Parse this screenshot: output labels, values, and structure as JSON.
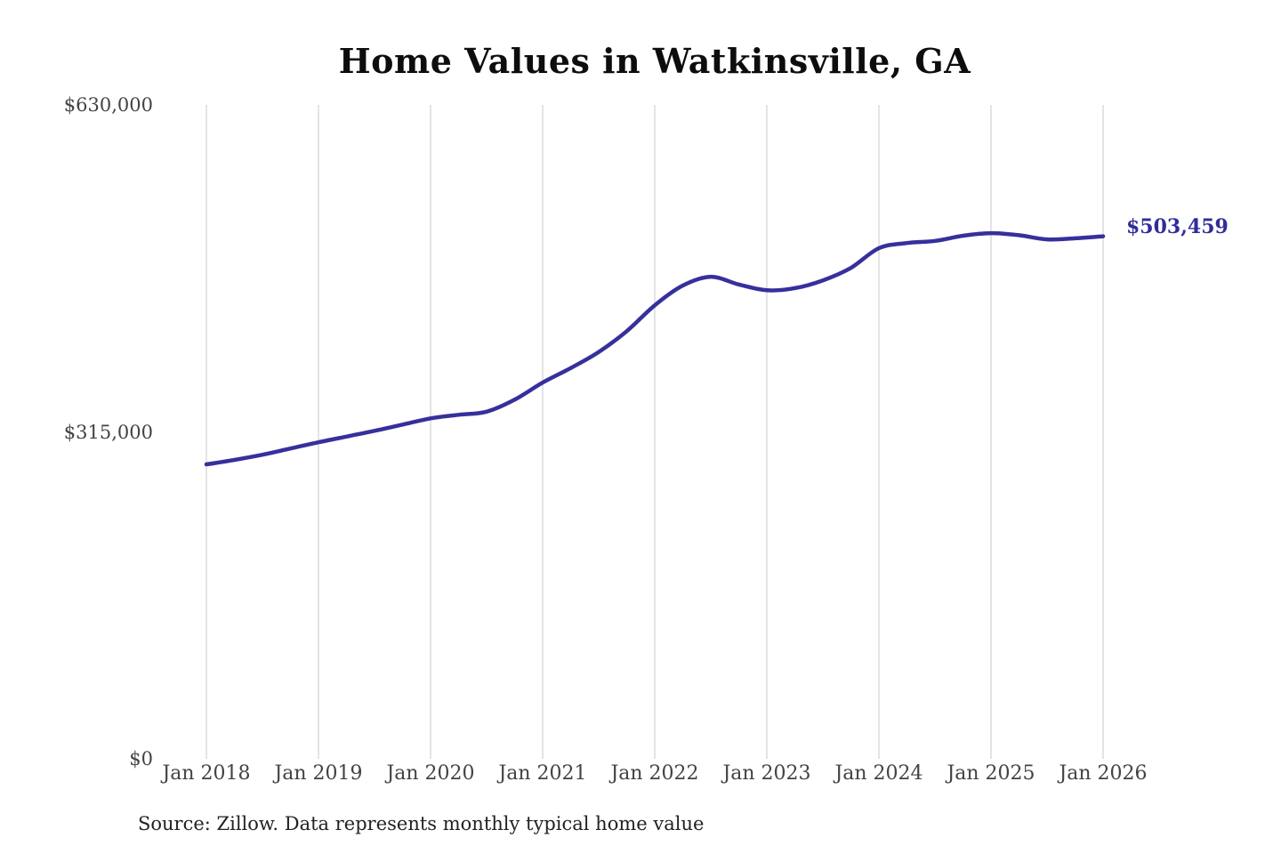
{
  "page": {
    "background_color": "#ffffff"
  },
  "chart_data": {
    "type": "line",
    "title": "Home Values in Watkinsville, GA",
    "xlabel": "",
    "ylabel": "",
    "x_tick_labels": [
      "Jan 2018",
      "Jan 2019",
      "Jan 2020",
      "Jan 2021",
      "Jan 2022",
      "Jan 2023",
      "Jan 2024",
      "Jan 2025",
      "Jan 2026"
    ],
    "y_tick_labels": [
      "$0",
      "$315,000",
      "$630,000"
    ],
    "y_tick_values": [
      0,
      315000,
      630000
    ],
    "ylim": [
      0,
      630000
    ],
    "x_range_months": [
      "2018-01",
      "2026-01"
    ],
    "grid": "vertical-only",
    "legend_position": "none",
    "gridline_color": "#c9c9c9",
    "line_color": "#36309c",
    "end_label": "$503,459",
    "end_label_color": "#312c9b",
    "series": [
      {
        "name": "Monthly typical home value",
        "points": [
          {
            "date": "2018-01",
            "value": 283700
          },
          {
            "date": "2018-04",
            "value": 288000
          },
          {
            "date": "2018-07",
            "value": 293000
          },
          {
            "date": "2018-10",
            "value": 299000
          },
          {
            "date": "2019-01",
            "value": 305000
          },
          {
            "date": "2019-04",
            "value": 310500
          },
          {
            "date": "2019-07",
            "value": 316000
          },
          {
            "date": "2019-10",
            "value": 322000
          },
          {
            "date": "2020-01",
            "value": 328000
          },
          {
            "date": "2020-04",
            "value": 331500
          },
          {
            "date": "2020-07",
            "value": 334500
          },
          {
            "date": "2020-10",
            "value": 346000
          },
          {
            "date": "2021-01",
            "value": 362500
          },
          {
            "date": "2021-04",
            "value": 376500
          },
          {
            "date": "2021-07",
            "value": 392000
          },
          {
            "date": "2021-10",
            "value": 412000
          },
          {
            "date": "2022-01",
            "value": 437000
          },
          {
            "date": "2022-04",
            "value": 456000
          },
          {
            "date": "2022-07",
            "value": 464500
          },
          {
            "date": "2022-10",
            "value": 457000
          },
          {
            "date": "2023-01",
            "value": 451500
          },
          {
            "date": "2023-04",
            "value": 453500
          },
          {
            "date": "2023-07",
            "value": 461000
          },
          {
            "date": "2023-10",
            "value": 473000
          },
          {
            "date": "2024-01",
            "value": 492000
          },
          {
            "date": "2024-04",
            "value": 497000
          },
          {
            "date": "2024-07",
            "value": 499000
          },
          {
            "date": "2024-10",
            "value": 504000
          },
          {
            "date": "2025-01",
            "value": 506500
          },
          {
            "date": "2025-04",
            "value": 504500
          },
          {
            "date": "2025-07",
            "value": 500500
          },
          {
            "date": "2025-10",
            "value": 501500
          },
          {
            "date": "2026-01",
            "value": 503459
          }
        ]
      }
    ],
    "source_note": "Source: Zillow. Data represents monthly typical home value"
  }
}
